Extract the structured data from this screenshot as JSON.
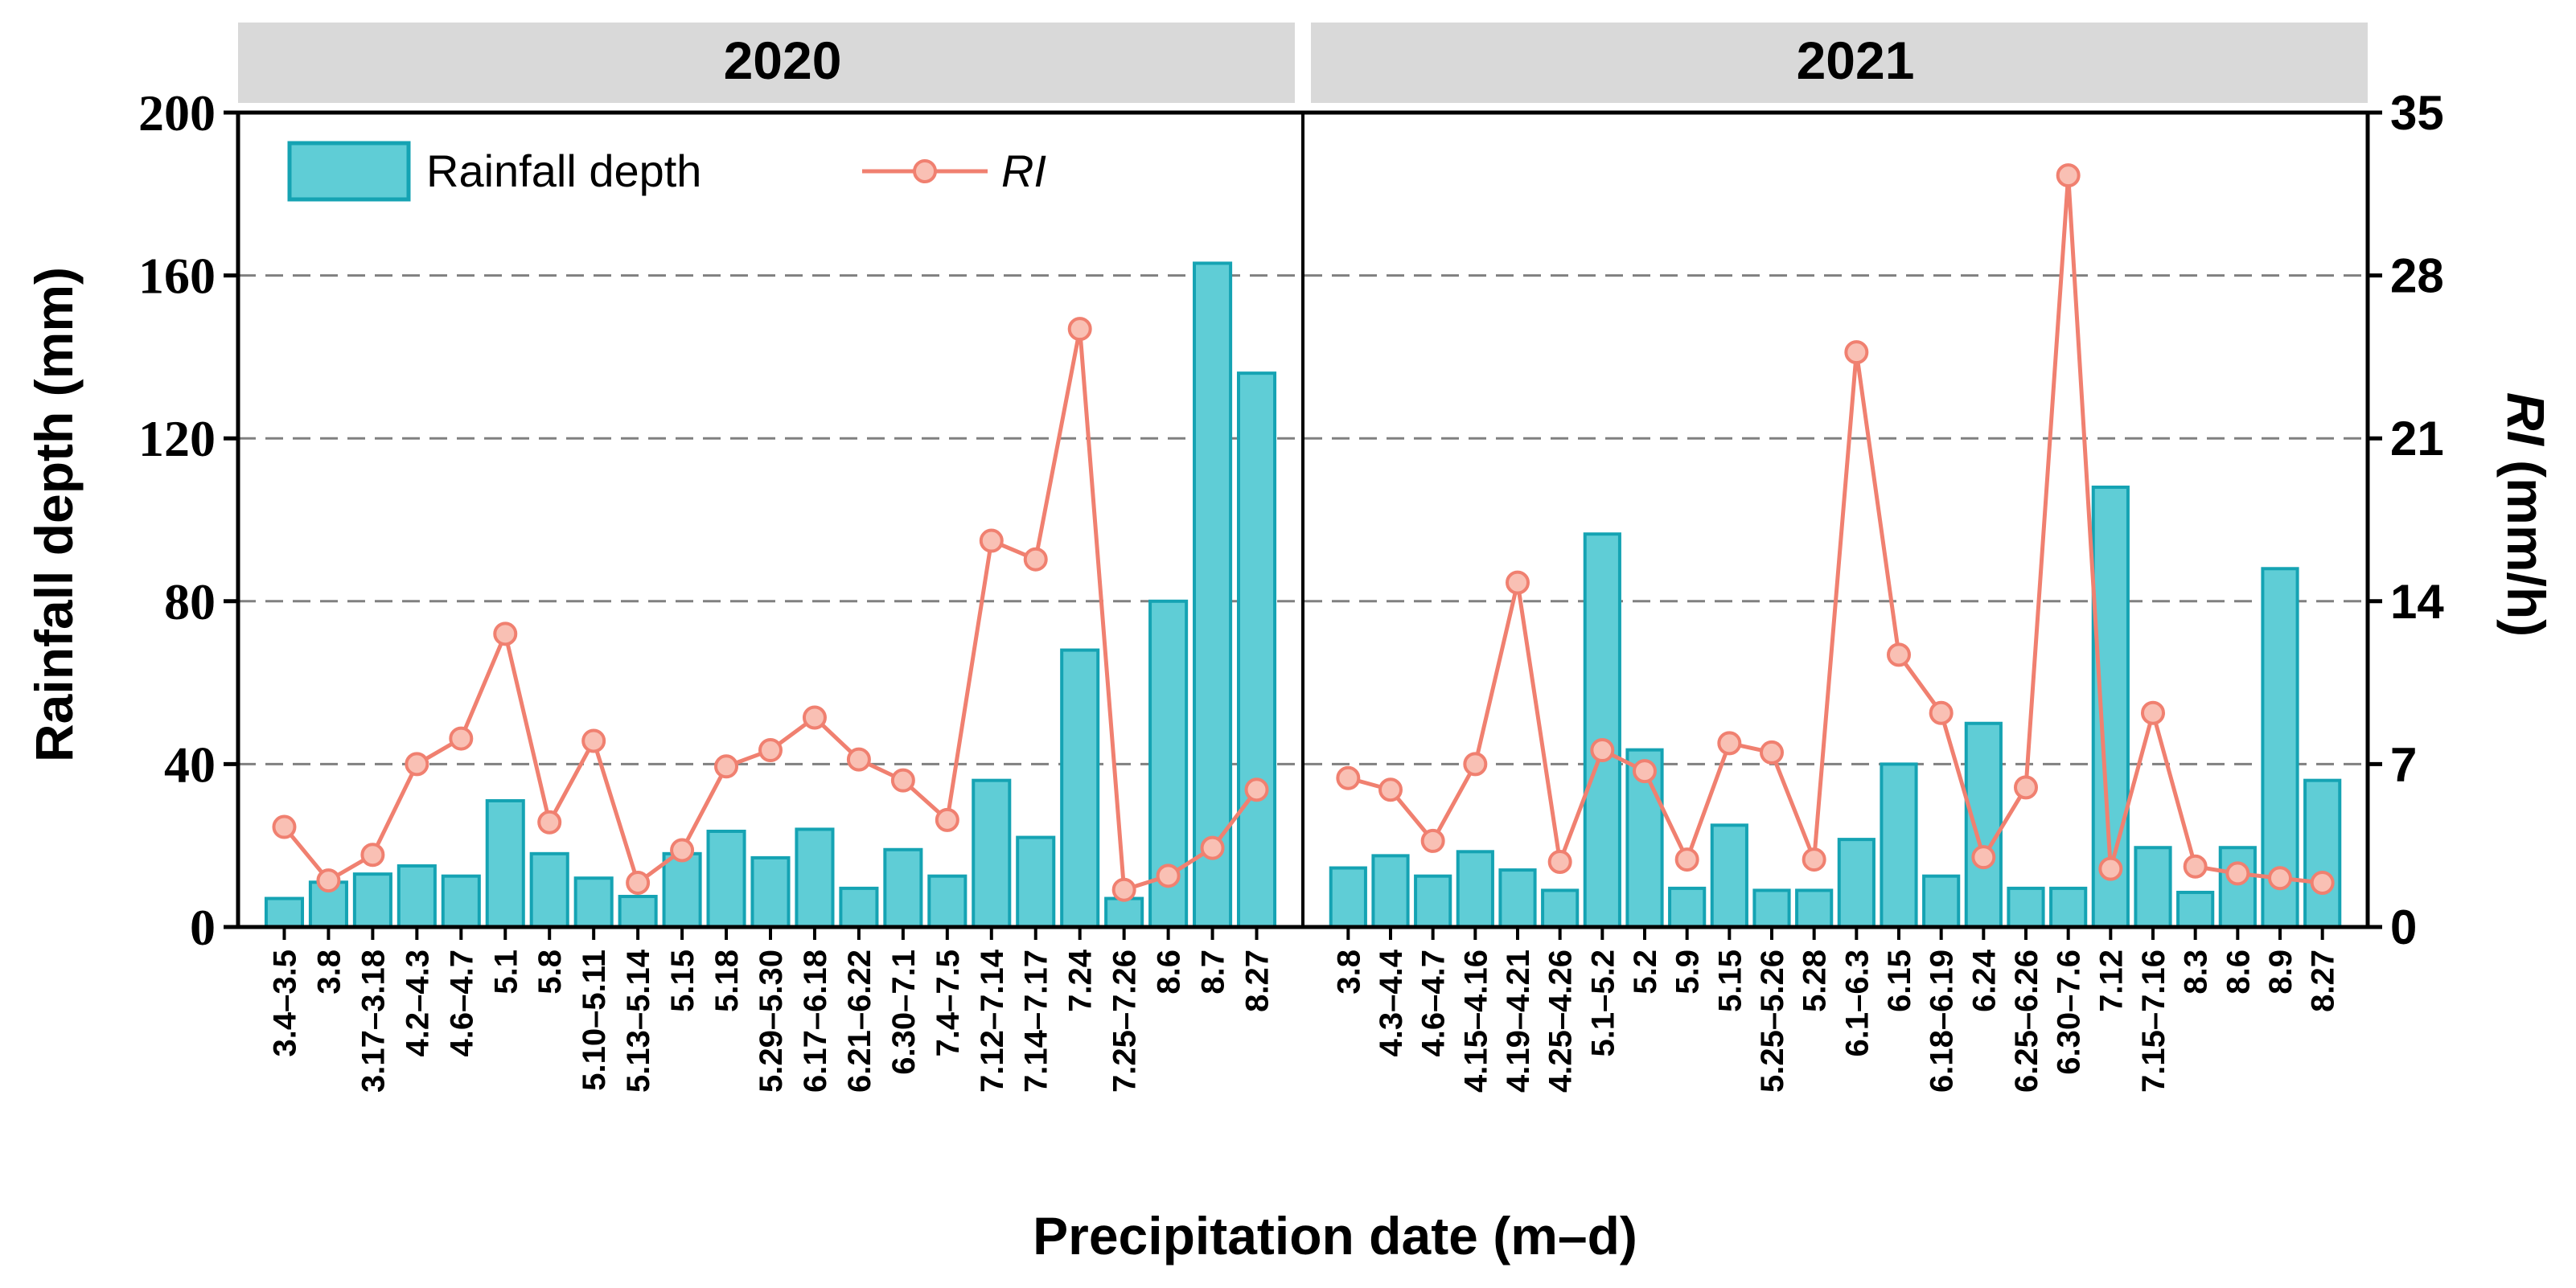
{
  "chart_data": {
    "type": "bar+line",
    "facets": [
      "2020",
      "2021"
    ],
    "xlabel": "Precipitation date (m–d)",
    "ylabel_left": "Rainfall depth (mm)",
    "ylabel_right_italic": "RI",
    "ylabel_right_unit": " (mm/h)",
    "ylim_left": [
      0,
      200
    ],
    "yticks_left": [
      0,
      40,
      80,
      120,
      160,
      200
    ],
    "ylim_right": [
      0,
      35
    ],
    "yticks_right": [
      0,
      7,
      14,
      21,
      28,
      35
    ],
    "legend": {
      "bar": "Rainfall depth",
      "line": "RI",
      "placement": "top-left"
    },
    "colors": {
      "bar_fill": "#5fcdd6",
      "bar_stroke": "#15a3b3",
      "line": "#f08070",
      "marker_fill": "#f9c0b4",
      "strip_bg": "#d9d9d9",
      "grid": "#808080"
    },
    "panels": [
      {
        "year": "2020",
        "dates": [
          "3.4–3.5",
          "3.8",
          "3.17–3.18",
          "4.2–4.3",
          "4.6–4.7",
          "5.1",
          "5.8",
          "5.10–5.11",
          "5.13–5.14",
          "5.15",
          "5.18",
          "5.29–5.30",
          "6.17–6.18",
          "6.21–6.22",
          "6.30–7.1",
          "7.4–7.5",
          "7.12–7.14",
          "7.14–7.17",
          "7.24",
          "7.25–7.26",
          "8.6",
          "8.7",
          "8.27"
        ],
        "rainfall_depth": [
          7,
          11,
          13,
          15,
          12.5,
          31,
          18,
          12,
          7.5,
          18,
          23.5,
          17,
          24,
          9.5,
          19,
          12.5,
          36,
          22,
          68,
          7,
          80,
          163,
          136
        ],
        "RI": [
          4.3,
          2.0,
          3.1,
          7.0,
          8.1,
          12.6,
          4.5,
          8.0,
          1.9,
          3.3,
          6.9,
          7.6,
          9.0,
          7.2,
          6.3,
          4.6,
          16.6,
          15.8,
          25.7,
          1.6,
          2.2,
          3.4,
          5.9
        ]
      },
      {
        "year": "2021",
        "dates": [
          "3.8",
          "4.3–4.4",
          "4.6–4.7",
          "4.15–4.16",
          "4.19–4.21",
          "4.25–4.26",
          "5.1–5.2",
          "5.2",
          "5.9",
          "5.15",
          "5.25–5.26",
          "5.28",
          "6.1–6.3",
          "6.15",
          "6.18–6.19",
          "6.24",
          "6.25–6.26",
          "6.30–7.6",
          "7.12",
          "7.15–7.16",
          "8.3",
          "8.6",
          "8.9",
          "8.27"
        ],
        "rainfall_depth": [
          14.5,
          17.5,
          12.5,
          18.5,
          14,
          9,
          96.5,
          43.5,
          9.5,
          25,
          9,
          9,
          21.5,
          40,
          12.5,
          50,
          9.5,
          9.5,
          108,
          19.5,
          8.5,
          19.5,
          88,
          36
        ],
        "RI": [
          6.4,
          5.9,
          3.7,
          7.0,
          14.8,
          2.8,
          7.6,
          6.7,
          2.9,
          7.9,
          7.5,
          2.9,
          24.7,
          11.7,
          9.2,
          3.0,
          6.0,
          32.3,
          2.5,
          9.2,
          2.6,
          2.3,
          2.1,
          1.9
        ]
      }
    ]
  }
}
